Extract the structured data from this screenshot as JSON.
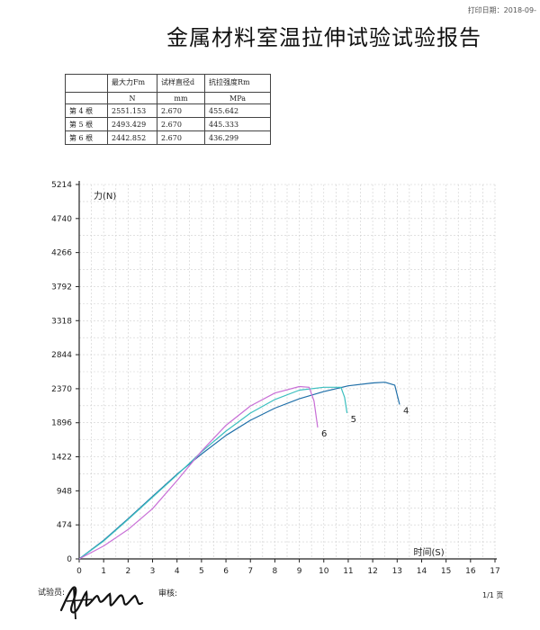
{
  "print_date": "打印日期：2018-09-",
  "title": "金属材料室温拉伸试验试验报告",
  "table": {
    "headers": [
      "",
      "最大力Fm",
      "试样直径d",
      "抗拉强度Rm"
    ],
    "units": [
      "",
      "N",
      "mm",
      "MPa"
    ],
    "rows": [
      [
        "第 4 根",
        "2551.153",
        "2.670",
        "455.642"
      ],
      [
        "第 5 根",
        "2493.429",
        "2.670",
        "445.333"
      ],
      [
        "第 6 根",
        "2442.852",
        "2.670",
        "436.299"
      ]
    ]
  },
  "chart_data": {
    "type": "line",
    "ylabel": "力(N)",
    "xlabel": "时间(S)",
    "xlim": [
      0,
      17
    ],
    "ylim": [
      0,
      5214
    ],
    "x_ticks": [
      "0",
      "1",
      "2",
      "3",
      "4",
      "5",
      "6",
      "7",
      "8",
      "9",
      "10",
      "11",
      "12",
      "13",
      "14",
      "15",
      "16",
      "17"
    ],
    "y_ticks": [
      "0",
      "474",
      "948",
      "1422",
      "1896",
      "2370",
      "2844",
      "3318",
      "3792",
      "4266",
      "4740",
      "5214"
    ],
    "grid": true,
    "series": [
      {
        "name": "4",
        "color": "#1f6fa8",
        "x": [
          0,
          1,
          2,
          3,
          4,
          5,
          6,
          7,
          8,
          9,
          10,
          11,
          12,
          12.5,
          12.9,
          13.1
        ],
        "y": [
          0,
          260,
          560,
          870,
          1180,
          1460,
          1720,
          1930,
          2100,
          2230,
          2330,
          2410,
          2450,
          2460,
          2420,
          2150
        ]
      },
      {
        "name": "5",
        "color": "#3bbfbf",
        "x": [
          0,
          1,
          2,
          3,
          4,
          5,
          6,
          7,
          8,
          9,
          10,
          10.7,
          10.85,
          10.95
        ],
        "y": [
          0,
          250,
          550,
          860,
          1170,
          1490,
          1780,
          2030,
          2220,
          2350,
          2390,
          2390,
          2250,
          2030
        ]
      },
      {
        "name": "6",
        "color": "#c86fd6",
        "x": [
          0,
          1,
          2,
          3,
          4,
          5,
          6,
          7,
          8,
          9,
          9.4,
          9.6,
          9.75
        ],
        "y": [
          0,
          180,
          410,
          700,
          1090,
          1500,
          1860,
          2130,
          2310,
          2400,
          2390,
          2200,
          1830
        ]
      }
    ]
  },
  "footer": {
    "tester_label": "试验员:",
    "reviewer_label": "审核:",
    "page": "1/1 页"
  }
}
